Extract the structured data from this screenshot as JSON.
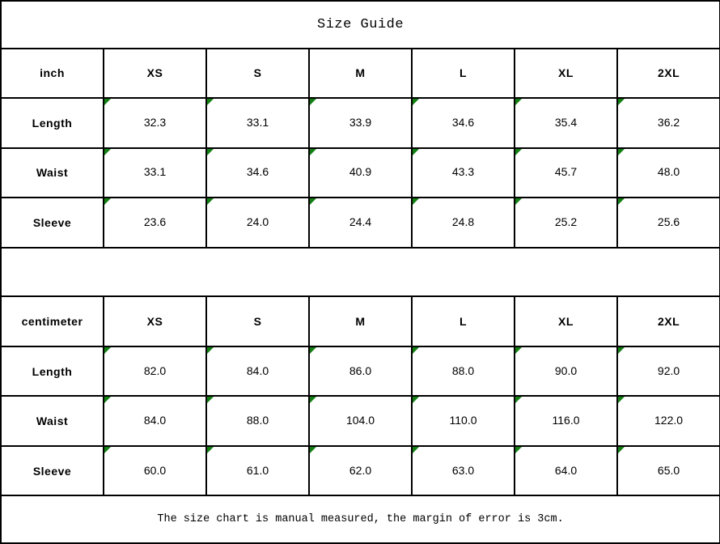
{
  "title": "Size Guide",
  "footer_note": "The size chart is manual measured, the margin of error is 3cm.",
  "tables": [
    {
      "unit_label": "inch",
      "size_headers": [
        "XS",
        "S",
        "M",
        "L",
        "XL",
        "2XL"
      ],
      "rows": [
        {
          "label": "Length",
          "values": [
            "32.3",
            "33.1",
            "33.9",
            "34.6",
            "35.4",
            "36.2"
          ]
        },
        {
          "label": "Waist",
          "values": [
            "33.1",
            "34.6",
            "40.9",
            "43.3",
            "45.7",
            "48.0"
          ]
        },
        {
          "label": "Sleeve",
          "values": [
            "23.6",
            "24.0",
            "24.4",
            "24.8",
            "25.2",
            "25.6"
          ]
        }
      ]
    },
    {
      "unit_label": "centimeter",
      "size_headers": [
        "XS",
        "S",
        "M",
        "L",
        "XL",
        "2XL"
      ],
      "rows": [
        {
          "label": "Length",
          "values": [
            "82.0",
            "84.0",
            "86.0",
            "88.0",
            "90.0",
            "92.0"
          ]
        },
        {
          "label": "Waist",
          "values": [
            "84.0",
            "88.0",
            "104.0",
            "110.0",
            "116.0",
            "122.0"
          ]
        },
        {
          "label": "Sleeve",
          "values": [
            "60.0",
            "61.0",
            "62.0",
            "63.0",
            "64.0",
            "65.0"
          ]
        }
      ]
    }
  ],
  "icons": {
    "cell_flag": "stored-as-text-triangle"
  },
  "colors": {
    "grid": "#000000",
    "background": "#ffffff",
    "text": "#000000",
    "flag_green": "#148014"
  }
}
